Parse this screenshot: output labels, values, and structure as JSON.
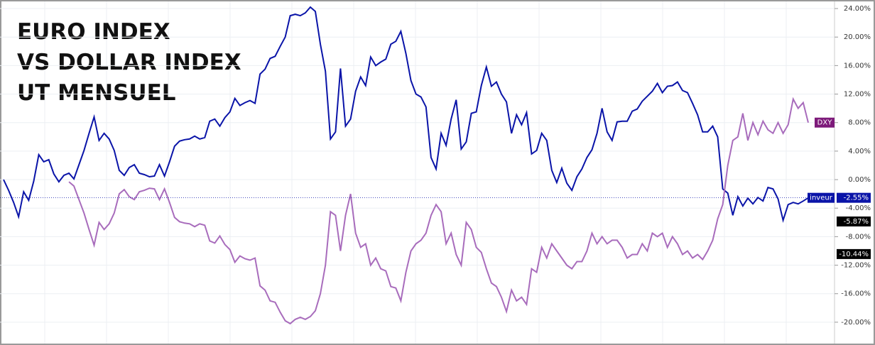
{
  "chart_data": {
    "type": "line",
    "title_lines": [
      "EURO INDEX",
      "VS DOLLAR INDEX",
      "UT MENSUEL"
    ],
    "ylim": [
      -22.7,
      25
    ],
    "yticks": [
      {
        "value": 24,
        "label": "24.00%"
      },
      {
        "value": 20,
        "label": "20.00%"
      },
      {
        "value": 16,
        "label": "16.00%"
      },
      {
        "value": 12,
        "label": "12.00%"
      },
      {
        "value": 8,
        "label": "8.00%"
      },
      {
        "value": 4,
        "label": "4.00%"
      },
      {
        "value": 0,
        "label": "0.00%"
      },
      {
        "value": -4,
        "label": "-4.00%"
      },
      {
        "value": -8,
        "label": "-8.00%"
      },
      {
        "value": -12,
        "label": "-12.00%"
      },
      {
        "value": -16,
        "label": "-16.00%"
      },
      {
        "value": -20,
        "label": "-20.00%"
      }
    ],
    "grid": true,
    "series": [
      {
        "name": "inveur",
        "color": "#0a14a8",
        "last_value_label": "-2.55%",
        "values": [
          0.0,
          -1.5,
          -3.2,
          -5.2,
          -1.7,
          -2.9,
          -0.2,
          3.5,
          2.5,
          2.8,
          0.8,
          -0.3,
          0.6,
          0.9,
          0.1,
          2.1,
          4.1,
          6.5,
          8.8,
          5.5,
          6.5,
          5.7,
          4.1,
          1.3,
          0.6,
          1.7,
          2.1,
          0.9,
          0.7,
          0.4,
          0.5,
          2.1,
          0.5,
          2.5,
          4.7,
          5.4,
          5.6,
          5.7,
          6.1,
          5.7,
          5.9,
          8.2,
          8.5,
          7.5,
          8.7,
          9.5,
          11.4,
          10.4,
          10.8,
          11.1,
          10.7,
          14.8,
          15.5,
          17.0,
          17.3,
          18.7,
          20.0,
          23.0,
          23.2,
          23.0,
          23.4,
          24.2,
          23.6,
          19.0,
          15.2,
          5.7,
          6.7,
          15.6,
          7.5,
          8.5,
          12.4,
          14.4,
          13.2,
          17.2,
          16.0,
          16.5,
          16.9,
          19.0,
          19.4,
          20.8,
          17.7,
          13.9,
          12.0,
          11.6,
          10.2,
          3.1,
          1.5,
          6.5,
          4.8,
          8.5,
          11.2,
          4.3,
          5.3,
          9.3,
          9.5,
          13.2,
          15.8,
          13.1,
          13.7,
          12.0,
          10.9,
          6.5,
          9.1,
          7.7,
          9.4,
          3.6,
          4.1,
          6.5,
          5.5,
          1.3,
          -0.4,
          1.6,
          -0.5,
          -1.5,
          0.4,
          1.5,
          3.1,
          4.2,
          6.5,
          10.0,
          6.7,
          5.5,
          8.1,
          8.2,
          8.2,
          9.6,
          9.9,
          11.0,
          11.7,
          12.4,
          13.5,
          12.2,
          13.1,
          13.2,
          13.7,
          12.5,
          12.2,
          10.7,
          9.1,
          6.7,
          6.7,
          7.5,
          6.0,
          -1.3,
          -1.9,
          -5.0,
          -2.4,
          -3.7,
          -2.6,
          -3.4,
          -2.5,
          -3.0,
          -1.1,
          -1.3,
          -2.7,
          -5.7,
          -3.5,
          -3.2,
          -3.4,
          -3.0,
          -2.55
        ]
      },
      {
        "name": "DXY",
        "color": "#a86cbc",
        "values": [
          null,
          null,
          null,
          null,
          null,
          null,
          null,
          null,
          null,
          null,
          null,
          null,
          null,
          -0.3,
          -0.9,
          -2.8,
          -4.7,
          -7.0,
          -9.2,
          -6.0,
          -7.0,
          -6.2,
          -4.7,
          -2.0,
          -1.4,
          -2.4,
          -2.8,
          -1.7,
          -1.5,
          -1.2,
          -1.3,
          -2.8,
          -1.3,
          -3.2,
          -5.3,
          -5.9,
          -6.1,
          -6.2,
          -6.6,
          -6.2,
          -6.4,
          -8.6,
          -8.9,
          -7.9,
          -9.1,
          -9.8,
          -11.6,
          -10.7,
          -11.1,
          -11.3,
          -11.0,
          -14.9,
          -15.5,
          -17.0,
          -17.2,
          -18.6,
          -19.8,
          -20.2,
          -19.6,
          -19.3,
          -19.6,
          -19.2,
          -18.4,
          -16.0,
          -12.0,
          -4.5,
          -5.0,
          -10.0,
          -5.0,
          -2.0,
          -7.5,
          -9.5,
          -9.0,
          -12.0,
          -11.0,
          -12.5,
          -12.8,
          -15.0,
          -15.2,
          -17.0,
          -13.0,
          -10.0,
          -9.0,
          -8.5,
          -7.5,
          -5.0,
          -3.5,
          -4.5,
          -9.0,
          -7.5,
          -10.5,
          -12.0,
          -6.0,
          -7.0,
          -9.5,
          -10.2,
          -12.5,
          -14.5,
          -15.0,
          -16.5,
          -18.5,
          -15.5,
          -17.0,
          -16.5,
          -17.5,
          -12.5,
          -13.0,
          -9.5,
          -11.0,
          -9.0,
          -10.0,
          -11.0,
          -12.0,
          -12.5,
          -11.5,
          -11.5,
          -10.0,
          -7.5,
          -9.0,
          -8.0,
          -9.0,
          -8.5,
          -8.5,
          -9.5,
          -11.0,
          -10.5,
          -10.5,
          -9.0,
          -10.0,
          -7.5,
          -8.0,
          -7.5,
          -9.5,
          -8.0,
          -9.0,
          -10.5,
          -10.0,
          -11.0,
          -10.5,
          -11.2,
          -10.0,
          -8.5,
          -5.5,
          -3.5,
          2.0,
          5.5,
          6.0,
          9.3,
          5.5,
          8.0,
          6.3,
          8.2,
          7.0,
          6.5,
          8.0,
          6.5,
          7.7,
          11.3,
          10.0,
          10.8,
          8.0
        ]
      }
    ],
    "price_markers": [
      {
        "value": -5.87,
        "label": "-5.87%"
      },
      {
        "value": -10.44,
        "label": "-10.44%"
      }
    ]
  }
}
